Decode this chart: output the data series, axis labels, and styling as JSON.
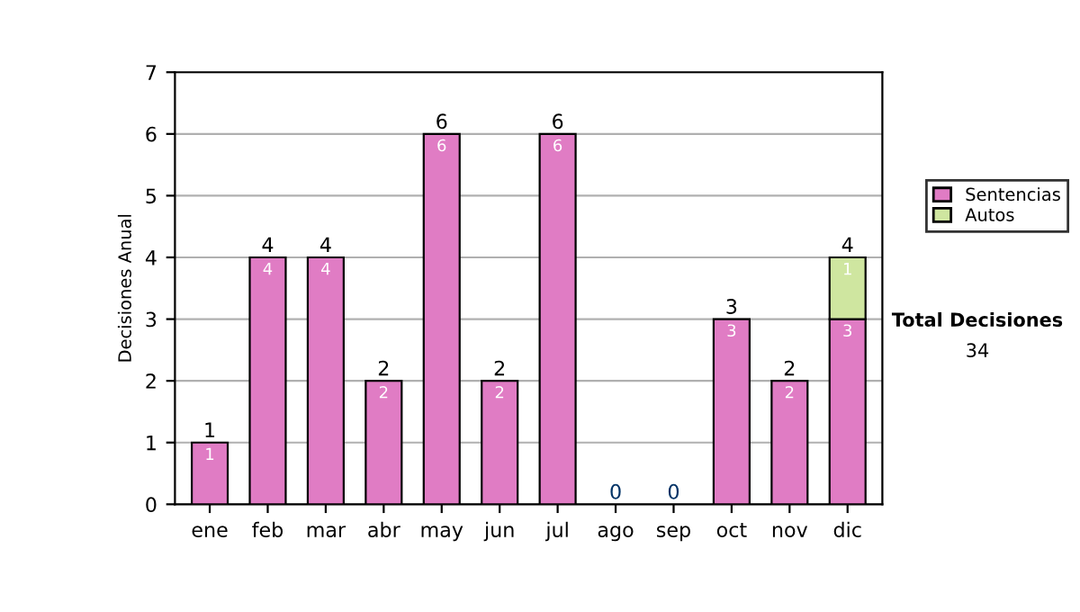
{
  "chart_data": {
    "type": "bar",
    "stacked": true,
    "ylabel": "Decisiones Anual",
    "categories": [
      "ene",
      "feb",
      "mar",
      "abr",
      "may",
      "jun",
      "jul",
      "ago",
      "sep",
      "oct",
      "nov",
      "dic"
    ],
    "series": [
      {
        "name": "Sentencias",
        "color": "#e07cc4",
        "values": [
          1,
          4,
          4,
          2,
          6,
          2,
          6,
          0,
          0,
          3,
          2,
          3
        ],
        "value_labels": [
          "1",
          "4",
          "4",
          "2",
          "6",
          "2",
          "6",
          null,
          null,
          "3",
          "2",
          "3"
        ]
      },
      {
        "name": "Autos",
        "color": "#cfe6a0",
        "values": [
          0,
          0,
          0,
          0,
          0,
          0,
          0,
          0,
          0,
          0,
          0,
          1
        ],
        "value_labels": [
          null,
          null,
          null,
          null,
          null,
          null,
          null,
          null,
          null,
          null,
          null,
          "1"
        ]
      }
    ],
    "totals": [
      "1",
      "4",
      "4",
      "2",
      "6",
      "2",
      "6",
      "0",
      "0",
      "3",
      "2",
      "4"
    ],
    "ylim": [
      0,
      7
    ],
    "yticks": [
      0,
      1,
      2,
      3,
      4,
      5,
      6,
      7
    ],
    "grid": "y",
    "legend": "right",
    "annotations": [
      "Total Decisiones",
      "34"
    ]
  }
}
